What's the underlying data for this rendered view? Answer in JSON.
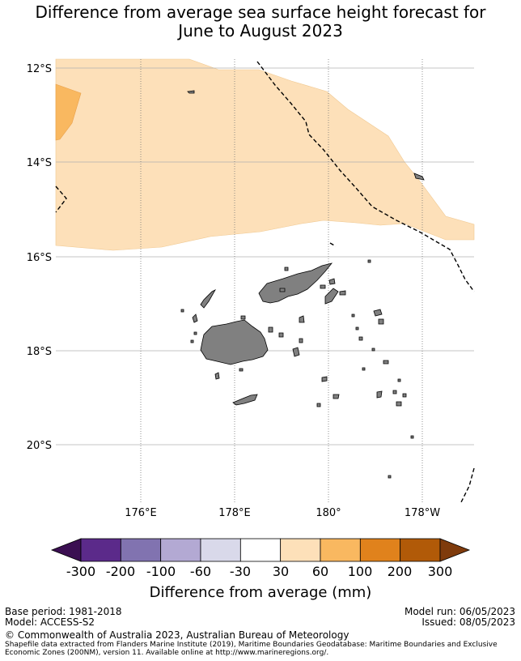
{
  "title_line1": "Difference from average sea surface height forecast for",
  "title_line2": "June to August 2023",
  "lat_labels": [
    "12°S",
    "14°S",
    "16°S",
    "18°S",
    "20°S"
  ],
  "lon_labels": [
    "176°E",
    "178°E",
    "180°",
    "178°W"
  ],
  "colorbar": {
    "label": "Difference from average (mm)",
    "ticks": [
      "-300",
      "-200",
      "-100",
      "-60",
      "-30",
      "30",
      "60",
      "100",
      "200",
      "300"
    ],
    "colors": [
      "#5b2a8a",
      "#8173b0",
      "#b3a9d3",
      "#d9d9ea",
      "#ffffff",
      "#fde0b9",
      "#f9b860",
      "#e0821c",
      "#b15a08"
    ],
    "under_color": "#3b0f52",
    "over_color": "#7f3b0c"
  },
  "colors": {
    "land": "#808080",
    "light_orange": "#fde0b9",
    "medium_orange": "#f9b860",
    "grid": "#b0b0b0"
  },
  "footer": {
    "base_period": "Base period: 1981-2018",
    "model": "Model: ACCESS-S2",
    "model_run": "Model run: 06/05/2023",
    "issued": "Issued: 08/05/2023",
    "copyright": "© Commonwealth of Australia 2023, Australian Bureau of Meteorology",
    "shapefile_line1": "Shapefile data extracted from Flanders Marine Institute (2019), Maritime Boundaries Geodatabase: Maritime Boundaries and Exclusive",
    "shapefile_line2": "Economic Zones (200NM), version 11. Available online at http://www.marineregions.org/."
  }
}
